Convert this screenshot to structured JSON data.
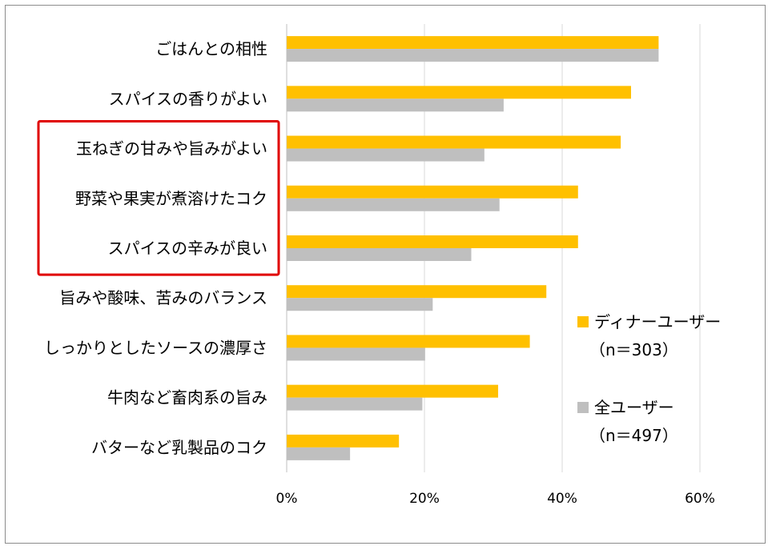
{
  "chart_data": {
    "type": "bar",
    "orientation": "horizontal",
    "categories": [
      "ごはんとの相性",
      "スパイスの香りがよい",
      "玉ねぎの甘みや旨みがよい",
      "野菜や果実が煮溶けたコク",
      "スパイスの辛みが良い",
      "旨みや酸味、苦みのバランス",
      "しっかりとしたソースの濃厚さ",
      "牛肉など畜肉系の旨み",
      "バターなど乳製品のコク"
    ],
    "series": [
      {
        "name": "ディナーユーザー",
        "subtitle": "（n＝303）",
        "color": "#FFC000",
        "values": [
          54,
          50,
          48.5,
          42.3,
          42.3,
          37.7,
          35.3,
          30.7,
          16.3
        ]
      },
      {
        "name": "全ユーザー",
        "subtitle": "（n＝497）",
        "color": "#BFBFBF",
        "values": [
          54,
          31.5,
          28.7,
          30.9,
          26.8,
          21.2,
          20.1,
          19.7,
          9.2
        ]
      }
    ],
    "xlim": [
      0,
      60
    ],
    "xticks": [
      "0%",
      "20%",
      "40%",
      "60%"
    ],
    "grid": true,
    "legend_position": "right",
    "highlight": {
      "color": "#E00000",
      "categories": [
        "玉ねぎの甘みや旨みがよい",
        "野菜や果実が煮溶けたコク",
        "スパイスの辛みが良い"
      ]
    }
  }
}
